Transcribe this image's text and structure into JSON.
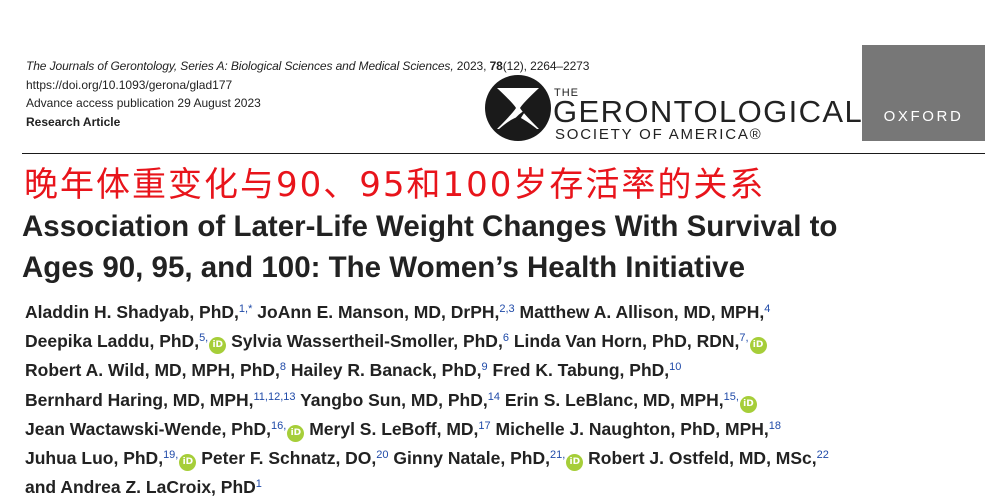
{
  "journal": {
    "citation_title": "The Journals of Gerontology, Series A: Biological Sciences and Medical Sciences,",
    "year": "2023,",
    "volume": "78",
    "issue_pages": "(12), 2264–2273",
    "doi": "https://doi.org/10.1093/gerona/glad177",
    "advance_access": "Advance access publication 29 August 2023",
    "article_type": "Research Article"
  },
  "publisher_logos": {
    "gsa_the": "THE",
    "gsa_name": "GERONTOLOGICAL",
    "gsa_sub": "SOCIETY OF AMERICA®",
    "oxford": "OXFORD",
    "oxford_bg": "#777777"
  },
  "title_cn": "晚年体重变化与90、95和100岁存活率的关系",
  "title_en_line1": "Association of Later-Life Weight Changes With Survival to",
  "title_en_line2": "Ages 90, 95, and 100: The Women’s Health Initiative",
  "authors": [
    {
      "name": "Aladdin H. Shadyab, PhD,",
      "sup": "1,*"
    },
    {
      "name": "JoAnn E. Manson, MD, DrPH,",
      "sup": "2,3"
    },
    {
      "name": "Matthew A. Allison, MD, MPH,",
      "sup": "4"
    },
    {
      "name": "Deepika Laddu, PhD,",
      "sup": "5,"
    },
    {
      "name": "Sylvia Wassertheil-Smoller, PhD,",
      "sup": "6"
    },
    {
      "name": "Linda Van Horn, PhD, RDN,",
      "sup": "7,"
    },
    {
      "name": "Robert A. Wild, MD, MPH, PhD,",
      "sup": "8"
    },
    {
      "name": "Hailey R. Banack, PhD,",
      "sup": "9"
    },
    {
      "name": "Fred K. Tabung, PhD,",
      "sup": "10"
    },
    {
      "name": "Bernhard Haring, MD, MPH,",
      "sup": "11,12,13"
    },
    {
      "name": "Yangbo Sun, MD, PhD,",
      "sup": "14"
    },
    {
      "name": "Erin S. LeBlanc, MD, MPH,",
      "sup": "15,"
    },
    {
      "name": "Jean Wactawski-Wende, PhD,",
      "sup": "16,"
    },
    {
      "name": "Meryl S. LeBoff, MD,",
      "sup": "17"
    },
    {
      "name": "Michelle J. Naughton, PhD, MPH,",
      "sup": "18"
    },
    {
      "name": "Juhua Luo, PhD,",
      "sup": "19,"
    },
    {
      "name": "Peter F. Schnatz, DO,",
      "sup": "20"
    },
    {
      "name": "Ginny Natale, PhD,",
      "sup": "21,"
    },
    {
      "name": "Robert J. Ostfeld, MD, MSc,",
      "sup": "22"
    },
    {
      "name": "and Andrea Z. LaCroix, PhD",
      "sup": "1"
    }
  ],
  "orcid_label": "iD",
  "colors": {
    "cn_title": "#e8141b",
    "superscript": "#1f4aa8",
    "orcid": "#a6ce39"
  }
}
